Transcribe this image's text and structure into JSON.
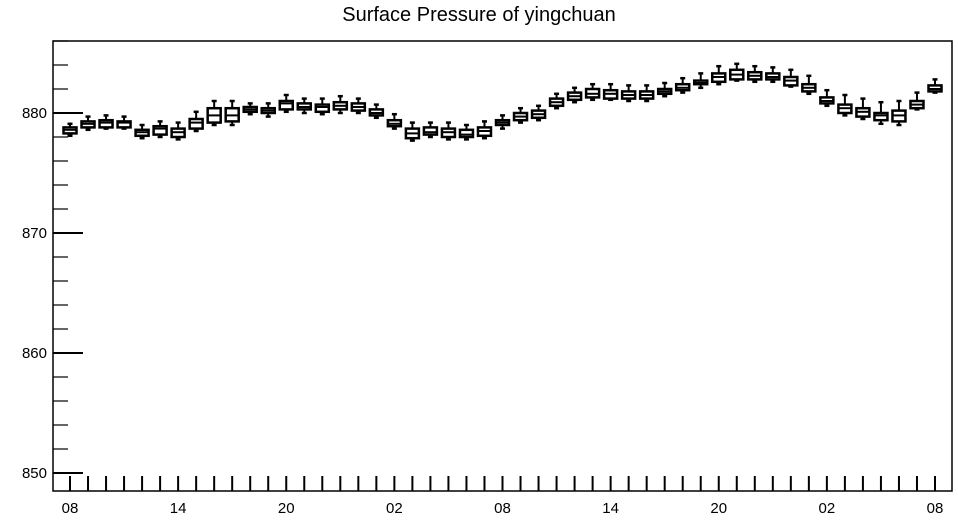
{
  "chart_data": {
    "type": "boxplot",
    "title": "Surface Pressure of yingchuan",
    "xlabel": "",
    "ylabel": "",
    "ylim": [
      848.5,
      886
    ],
    "y_ticks": [
      850,
      860,
      870,
      880
    ],
    "x_tick_labels": [
      "08",
      "14",
      "20",
      "02",
      "08",
      "14",
      "20",
      "02",
      "08"
    ],
    "x_tick_label_every": 6,
    "grid": false,
    "series": [
      {
        "x": [
          0,
          1,
          2,
          3,
          4,
          5,
          6,
          7,
          8,
          9,
          10,
          11,
          12,
          13,
          14,
          15,
          16,
          17,
          18,
          19,
          20,
          21,
          22,
          23,
          24,
          25,
          26,
          27,
          28,
          29,
          30,
          31,
          32,
          33,
          34,
          35,
          36,
          37,
          38,
          39,
          40,
          41,
          42,
          43,
          44,
          45,
          46,
          47,
          48
        ],
        "min": [
          878.1,
          878.6,
          878.7,
          878.7,
          877.9,
          878.0,
          877.8,
          878.5,
          879.0,
          879.0,
          879.9,
          879.7,
          880.1,
          880.0,
          879.9,
          880.0,
          880.0,
          879.6,
          878.7,
          877.7,
          878.0,
          877.8,
          877.8,
          877.9,
          878.7,
          879.2,
          879.4,
          880.4,
          880.9,
          881.1,
          881.1,
          881.0,
          881.0,
          881.4,
          881.7,
          882.1,
          882.4,
          882.7,
          882.6,
          882.6,
          882.2,
          881.6,
          880.6,
          879.8,
          879.5,
          879.1,
          879.0,
          880.3,
          881.7
        ],
        "q1": [
          878.3,
          878.8,
          878.8,
          878.8,
          878.1,
          878.2,
          878.0,
          878.7,
          879.2,
          879.3,
          880.1,
          880.0,
          880.3,
          880.3,
          880.1,
          880.3,
          880.2,
          879.8,
          878.9,
          877.9,
          878.2,
          878.0,
          878.0,
          878.1,
          879.0,
          879.4,
          879.6,
          880.6,
          881.1,
          881.3,
          881.2,
          881.2,
          881.2,
          881.6,
          881.9,
          882.4,
          882.6,
          882.8,
          882.8,
          882.8,
          882.3,
          881.8,
          880.8,
          880.0,
          879.7,
          879.4,
          879.3,
          880.4,
          881.8
        ],
        "median": [
          878.6,
          879.1,
          879.2,
          879.2,
          878.4,
          878.7,
          878.4,
          879.2,
          879.8,
          879.8,
          880.3,
          880.2,
          880.8,
          880.5,
          880.5,
          880.6,
          880.5,
          880.0,
          879.1,
          878.3,
          878.4,
          878.4,
          878.2,
          878.5,
          879.2,
          879.7,
          879.9,
          880.9,
          881.4,
          881.6,
          881.6,
          881.5,
          881.5,
          881.8,
          882.1,
          882.5,
          883.0,
          883.2,
          883.1,
          883.0,
          882.7,
          882.1,
          881.0,
          880.4,
          880.1,
          879.8,
          879.8,
          880.7,
          882.0
        ],
        "q3": [
          878.8,
          879.3,
          879.4,
          879.3,
          878.6,
          878.9,
          878.7,
          879.5,
          880.4,
          880.4,
          880.5,
          880.4,
          881.0,
          880.8,
          880.7,
          880.9,
          880.8,
          880.3,
          879.4,
          878.7,
          878.8,
          878.7,
          878.6,
          878.8,
          879.4,
          880.0,
          880.2,
          881.2,
          881.7,
          882.0,
          881.9,
          881.8,
          881.8,
          882.0,
          882.4,
          882.7,
          883.3,
          883.6,
          883.4,
          883.3,
          883.0,
          882.4,
          881.3,
          880.7,
          880.4,
          880.0,
          880.2,
          881.0,
          882.3
        ],
        "max": [
          879.1,
          879.7,
          879.8,
          879.7,
          879.0,
          879.3,
          879.2,
          880.1,
          881.0,
          881.0,
          880.8,
          880.8,
          881.5,
          881.2,
          881.2,
          881.4,
          881.2,
          880.7,
          879.9,
          879.2,
          879.2,
          879.2,
          879.0,
          879.3,
          879.8,
          880.4,
          880.6,
          881.6,
          882.1,
          882.4,
          882.4,
          882.3,
          882.3,
          882.5,
          882.9,
          883.3,
          883.9,
          884.1,
          883.9,
          883.8,
          883.6,
          883.1,
          881.9,
          881.5,
          881.2,
          880.9,
          881.0,
          881.7,
          882.8
        ]
      }
    ]
  }
}
